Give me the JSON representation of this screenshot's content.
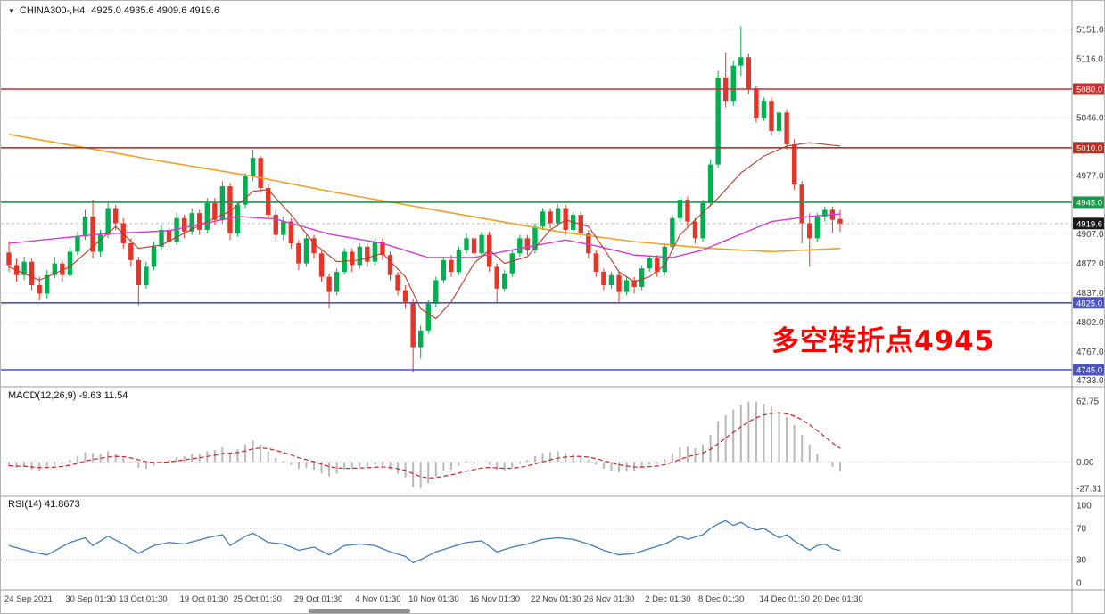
{
  "header": {
    "dropdown_icon": "▼",
    "symbol": "CHINA300-,H4",
    "ohlc": "4925.0 4935.6 4909.6 4919.6"
  },
  "theme": {
    "background": "#ffffff",
    "grid": "#e7e7e7",
    "axis_text": "#3a3a3a",
    "separator": "#9c9c9c",
    "up_color": "#00b050",
    "down_color": "#e53528",
    "current_price_line": "#bdbdbd"
  },
  "chart_data": {
    "type": "candlestick",
    "symbol": "CHINA300-,H4",
    "timeframe": "H4",
    "title": "CHINA300-,H4 4925.0 4935.6 4909.6 4919.6",
    "ohlc_current": {
      "open": 4925.0,
      "high": 4935.6,
      "low": 4909.6,
      "close": 4919.6
    },
    "y_axis": {
      "labels": [
        {
          "text": "5151.0",
          "price": 5151.0
        },
        {
          "text": "5116.0",
          "price": 5116.0
        },
        {
          "text": "5046.0",
          "price": 5046.0
        },
        {
          "text": "4977.0",
          "price": 4977.0
        },
        {
          "text": "4907.0",
          "price": 4907.0
        },
        {
          "text": "4872.0",
          "price": 4872.0
        },
        {
          "text": "4837.0",
          "price": 4837.0
        },
        {
          "text": "4802.0",
          "price": 4802.0
        },
        {
          "text": "4767.0",
          "price": 4767.0
        },
        {
          "text": "4733.0",
          "price": 4733.0
        }
      ]
    },
    "levels": [
      {
        "label": "5080.0",
        "price": 5080.0,
        "color": "#cf2e2e"
      },
      {
        "label": "5010.0",
        "price": 5010.0,
        "color": "#b73225"
      },
      {
        "label": "4945.0",
        "price": 4945.0,
        "color": "#169b4c"
      },
      {
        "label": "4825.0",
        "price": 4825.0,
        "color": "#4b53c5"
      },
      {
        "label": "4745.0",
        "price": 4745.0,
        "color": "#4b53c5"
      }
    ],
    "current_price": {
      "label": "4919.6",
      "price": 4919.6,
      "badge": "#1a1a1a"
    },
    "annotation": {
      "text": "多空转折点4945",
      "color": "#fe0000"
    },
    "x_labels": [
      {
        "text": "24 Sep 2021",
        "index": 0
      },
      {
        "text": "30 Sep 01:30",
        "index": 8
      },
      {
        "text": "13 Oct 01:30",
        "index": 15
      },
      {
        "text": "19 Oct 01:30",
        "index": 23
      },
      {
        "text": "25 Oct 01:30",
        "index": 30
      },
      {
        "text": "29 Oct 01:30",
        "index": 38
      },
      {
        "text": "4 Nov 01:30",
        "index": 46
      },
      {
        "text": "10 Nov 01:30",
        "index": 53
      },
      {
        "text": "16 Nov 01:30",
        "index": 61
      },
      {
        "text": "22 Nov 01:30",
        "index": 69
      },
      {
        "text": "26 Nov 01:30",
        "index": 76
      },
      {
        "text": "2 Dec 01:30",
        "index": 84
      },
      {
        "text": "8 Dec 01:30",
        "index": 91
      },
      {
        "text": "14 Dec 01:30",
        "index": 99
      },
      {
        "text": "20 Dec 01:30",
        "index": 106
      }
    ],
    "candles": [
      [
        4885,
        4898,
        4862,
        4870
      ],
      [
        4870,
        4878,
        4850,
        4858
      ],
      [
        4858,
        4880,
        4852,
        4874
      ],
      [
        4874,
        4878,
        4840,
        4846
      ],
      [
        4846,
        4856,
        4828,
        4836
      ],
      [
        4836,
        4864,
        4830,
        4858
      ],
      [
        4858,
        4880,
        4854,
        4872
      ],
      [
        4872,
        4876,
        4850,
        4858
      ],
      [
        4858,
        4892,
        4856,
        4886
      ],
      [
        4886,
        4910,
        4882,
        4904
      ],
      [
        4904,
        4936,
        4900,
        4928
      ],
      [
        4928,
        4948,
        4878,
        4886
      ],
      [
        4886,
        4912,
        4880,
        4906
      ],
      [
        4906,
        4944,
        4902,
        4938
      ],
      [
        4938,
        4942,
        4912,
        4920
      ],
      [
        4920,
        4926,
        4890,
        4896
      ],
      [
        4896,
        4902,
        4868,
        4876
      ],
      [
        4876,
        4880,
        4822,
        4846
      ],
      [
        4846,
        4874,
        4842,
        4868
      ],
      [
        4868,
        4898,
        4864,
        4892
      ],
      [
        4892,
        4918,
        4888,
        4912
      ],
      [
        4912,
        4916,
        4890,
        4898
      ],
      [
        4898,
        4932,
        4894,
        4926
      ],
      [
        4926,
        4930,
        4902,
        4910
      ],
      [
        4910,
        4938,
        4906,
        4932
      ],
      [
        4932,
        4936,
        4906,
        4912
      ],
      [
        4912,
        4950,
        4908,
        4944
      ],
      [
        4944,
        4950,
        4918,
        4924
      ],
      [
        4924,
        4970,
        4920,
        4964
      ],
      [
        4964,
        4968,
        4900,
        4908
      ],
      [
        4908,
        4946,
        4904,
        4942
      ],
      [
        4942,
        4980,
        4938,
        4976
      ],
      [
        4976,
        5008,
        4970,
        4998
      ],
      [
        4998,
        5000,
        4956,
        4962
      ],
      [
        4962,
        4966,
        4924,
        4930
      ],
      [
        4930,
        4936,
        4898,
        4906
      ],
      [
        4906,
        4928,
        4900,
        4922
      ],
      [
        4922,
        4926,
        4890,
        4896
      ],
      [
        4896,
        4900,
        4864,
        4872
      ],
      [
        4872,
        4906,
        4868,
        4902
      ],
      [
        4902,
        4906,
        4878,
        4884
      ],
      [
        4884,
        4888,
        4850,
        4856
      ],
      [
        4856,
        4860,
        4818,
        4838
      ],
      [
        4838,
        4866,
        4834,
        4862
      ],
      [
        4862,
        4890,
        4858,
        4886
      ],
      [
        4886,
        4890,
        4862,
        4870
      ],
      [
        4870,
        4896,
        4866,
        4892
      ],
      [
        4892,
        4896,
        4868,
        4874
      ],
      [
        4874,
        4902,
        4870,
        4898
      ],
      [
        4898,
        4902,
        4876,
        4882
      ],
      [
        4882,
        4886,
        4852,
        4858
      ],
      [
        4858,
        4862,
        4834,
        4840
      ],
      [
        4840,
        4846,
        4818,
        4826
      ],
      [
        4826,
        4830,
        4742,
        4772
      ],
      [
        4772,
        4798,
        4758,
        4792
      ],
      [
        4792,
        4828,
        4788,
        4824
      ],
      [
        4824,
        4856,
        4820,
        4852
      ],
      [
        4852,
        4880,
        4848,
        4876
      ],
      [
        4876,
        4882,
        4856,
        4862
      ],
      [
        4862,
        4892,
        4858,
        4888
      ],
      [
        4888,
        4908,
        4884,
        4902
      ],
      [
        4902,
        4906,
        4878,
        4884
      ],
      [
        4884,
        4910,
        4880,
        4906
      ],
      [
        4906,
        4910,
        4862,
        4868
      ],
      [
        4868,
        4872,
        4824,
        4842
      ],
      [
        4842,
        4864,
        4838,
        4860
      ],
      [
        4860,
        4888,
        4856,
        4884
      ],
      [
        4884,
        4906,
        4880,
        4902
      ],
      [
        4902,
        4906,
        4882,
        4888
      ],
      [
        4888,
        4920,
        4884,
        4916
      ],
      [
        4916,
        4938,
        4912,
        4934
      ],
      [
        4934,
        4938,
        4914,
        4920
      ],
      [
        4920,
        4942,
        4916,
        4938
      ],
      [
        4938,
        4942,
        4906,
        4912
      ],
      [
        4912,
        4934,
        4908,
        4930
      ],
      [
        4930,
        4934,
        4902,
        4908
      ],
      [
        4908,
        4912,
        4878,
        4884
      ],
      [
        4884,
        4888,
        4856,
        4862
      ],
      [
        4862,
        4866,
        4840,
        4846
      ],
      [
        4846,
        4862,
        4842,
        4858
      ],
      [
        4858,
        4862,
        4826,
        4838
      ],
      [
        4838,
        4856,
        4834,
        4852
      ],
      [
        4852,
        4856,
        4836,
        4844
      ],
      [
        4844,
        4870,
        4840,
        4866
      ],
      [
        4866,
        4882,
        4862,
        4878
      ],
      [
        4878,
        4882,
        4856,
        4862
      ],
      [
        4862,
        4896,
        4858,
        4892
      ],
      [
        4892,
        4930,
        4888,
        4926
      ],
      [
        4926,
        4952,
        4922,
        4948
      ],
      [
        4948,
        4952,
        4916,
        4922
      ],
      [
        4922,
        4926,
        4896,
        4902
      ],
      [
        4902,
        4948,
        4898,
        4944
      ],
      [
        4944,
        4996,
        4940,
        4990
      ],
      [
        4990,
        5102,
        4986,
        5094
      ],
      [
        5094,
        5124,
        5058,
        5066
      ],
      [
        5066,
        5114,
        5060,
        5108
      ],
      [
        5108,
        5155,
        5096,
        5118
      ],
      [
        5118,
        5122,
        5074,
        5080
      ],
      [
        5080,
        5084,
        5040,
        5046
      ],
      [
        5046,
        5070,
        5042,
        5066
      ],
      [
        5066,
        5070,
        5024,
        5030
      ],
      [
        5030,
        5056,
        5026,
        5052
      ],
      [
        5052,
        5056,
        5008,
        5014
      ],
      [
        5014,
        5020,
        4960,
        4966
      ],
      [
        4966,
        4970,
        4896,
        4920
      ],
      [
        4920,
        4932,
        4868,
        4902
      ],
      [
        4902,
        4932,
        4898,
        4928
      ],
      [
        4928,
        4940,
        4922,
        4936
      ],
      [
        4936,
        4940,
        4908,
        4924
      ],
      [
        4925,
        4935.6,
        4909.6,
        4919.6
      ]
    ],
    "moving_averages": [
      {
        "name": "slow-ma-orange",
        "color": "#eda128",
        "width": 1.6,
        "points": [
          [
            0,
            5026
          ],
          [
            10,
            5010
          ],
          [
            20,
            4994
          ],
          [
            32,
            4976
          ],
          [
            42,
            4958
          ],
          [
            52,
            4942
          ],
          [
            62,
            4926
          ],
          [
            72,
            4910
          ],
          [
            82,
            4898
          ],
          [
            92,
            4890
          ],
          [
            100,
            4886
          ],
          [
            109,
            4890
          ]
        ]
      },
      {
        "name": "medium-ma-magenta",
        "color": "#d23bd2",
        "width": 1.4,
        "points": [
          [
            0,
            4896
          ],
          [
            12,
            4907
          ],
          [
            21,
            4911
          ],
          [
            30,
            4928
          ],
          [
            35,
            4925
          ],
          [
            42,
            4907
          ],
          [
            49,
            4896
          ],
          [
            55,
            4879
          ],
          [
            61,
            4879
          ],
          [
            67,
            4890
          ],
          [
            73,
            4900
          ],
          [
            77,
            4893
          ],
          [
            82,
            4882
          ],
          [
            87,
            4879
          ],
          [
            91,
            4888
          ],
          [
            96,
            4907
          ],
          [
            100,
            4922
          ],
          [
            105,
            4928
          ],
          [
            109,
            4931
          ]
        ]
      },
      {
        "name": "fast-ma-red",
        "color": "#c0392b",
        "width": 1.1,
        "points": [
          [
            0,
            4868
          ],
          [
            4,
            4852
          ],
          [
            8,
            4868
          ],
          [
            12,
            4900
          ],
          [
            14,
            4916
          ],
          [
            17,
            4890
          ],
          [
            20,
            4894
          ],
          [
            23,
            4908
          ],
          [
            26,
            4922
          ],
          [
            29,
            4934
          ],
          [
            32,
            4958
          ],
          [
            34,
            4960
          ],
          [
            37,
            4930
          ],
          [
            40,
            4896
          ],
          [
            43,
            4874
          ],
          [
            46,
            4876
          ],
          [
            49,
            4884
          ],
          [
            52,
            4856
          ],
          [
            54,
            4818
          ],
          [
            56,
            4806
          ],
          [
            58,
            4826
          ],
          [
            61,
            4872
          ],
          [
            63,
            4888
          ],
          [
            65,
            4872
          ],
          [
            68,
            4880
          ],
          [
            71,
            4912
          ],
          [
            73,
            4924
          ],
          [
            76,
            4916
          ],
          [
            78,
            4890
          ],
          [
            80,
            4862
          ],
          [
            82,
            4850
          ],
          [
            84,
            4856
          ],
          [
            86,
            4870
          ],
          [
            88,
            4906
          ],
          [
            90,
            4924
          ],
          [
            93,
            4950
          ],
          [
            96,
            4980
          ],
          [
            99,
            5000
          ],
          [
            102,
            5012
          ],
          [
            105,
            5016
          ],
          [
            109,
            5012
          ]
        ]
      }
    ],
    "indicators": [
      {
        "type": "macd",
        "label": "MACD(12,26,9) -9.63 11.54",
        "histogram_color": "#b8b8b8",
        "signal_color": "#cc2222",
        "signal_period": 9,
        "scale_labels": [
          {
            "text": "62.75",
            "value": 62.75
          },
          {
            "text": "0.00",
            "value": 0
          },
          {
            "text": "-27.31",
            "value": -27.31
          }
        ],
        "histogram": [
          -4,
          -6,
          -5,
          -8,
          -9,
          -6,
          -3,
          -2,
          2,
          6,
          10,
          9,
          8,
          11,
          8,
          4,
          -1,
          -6,
          -7,
          -4,
          0,
          2,
          5,
          6,
          8,
          8,
          11,
          12,
          15,
          10,
          13,
          18,
          22,
          18,
          11,
          4,
          1,
          -3,
          -7,
          -6,
          -8,
          -12,
          -15,
          -12,
          -8,
          -7,
          -5,
          -5,
          -3,
          -4,
          -8,
          -12,
          -16,
          -26,
          -27,
          -22,
          -15,
          -9,
          -8,
          -4,
          -1,
          -2,
          0,
          -3,
          -8,
          -9,
          -6,
          -2,
          2,
          6,
          9,
          10,
          11,
          9,
          8,
          6,
          2,
          -3,
          -7,
          -9,
          -11,
          -10,
          -9,
          -6,
          -3,
          -2,
          3,
          9,
          15,
          16,
          14,
          18,
          28,
          42,
          48,
          54,
          59,
          62,
          62,
          60,
          57,
          52,
          46,
          38,
          28,
          18,
          8,
          0,
          -5,
          -9.63
        ]
      },
      {
        "type": "rsi",
        "label": "RSI(14) 41.8673",
        "color": "#3f7cba",
        "guide_levels": [
          70,
          30
        ],
        "scale_labels": [
          {
            "text": "100",
            "value": 100
          },
          {
            "text": "70",
            "value": 70
          },
          {
            "text": "30",
            "value": 30
          },
          {
            "text": "0",
            "value": 0
          }
        ],
        "values": [
          48,
          45.3,
          42.7,
          40,
          38,
          36,
          41.3,
          46.7,
          52,
          55,
          58,
          48,
          54,
          60,
          55,
          50,
          44,
          38,
          43,
          48,
          50,
          52,
          51,
          50,
          52.7,
          55.3,
          58,
          60,
          62,
          48,
          54,
          60,
          64,
          58,
          52,
          51,
          50,
          46,
          42,
          44,
          46,
          41,
          36,
          42,
          48,
          49,
          50,
          49,
          48,
          44,
          40,
          37,
          34,
          26,
          30,
          35,
          40,
          43,
          46,
          49,
          52,
          53,
          54,
          47,
          40,
          43,
          46,
          48,
          50,
          53,
          56,
          57,
          58,
          57,
          56,
          53,
          50,
          46,
          42,
          39,
          36,
          37,
          38,
          41,
          44,
          47,
          50,
          55,
          60,
          56,
          59,
          62,
          70,
          76,
          80,
          74,
          78,
          72,
          68,
          70,
          64,
          58,
          62,
          54,
          48,
          42,
          48,
          50,
          44,
          41.87
        ]
      }
    ]
  }
}
